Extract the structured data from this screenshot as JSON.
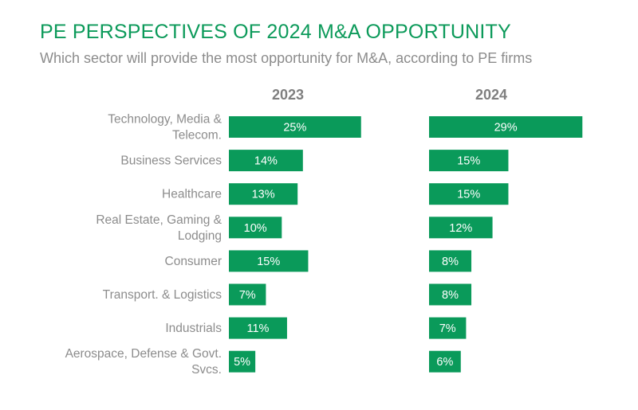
{
  "title": "PE PERSPECTIVES OF 2024 M&A OPPORTUNITY",
  "subtitle": "Which sector will provide the most opportunity for M&A, according to PE firms",
  "colors": {
    "bar": "#0a9a5a",
    "title": "#0c9a5a",
    "label": "#8c8c8c",
    "header": "#7f7f7f",
    "bar_text": "#ffffff"
  },
  "chart_data": {
    "type": "bar",
    "orientation": "horizontal",
    "value_format": "percent",
    "categories": [
      [
        "Technology, Media &",
        "Telecom."
      ],
      [
        "Business Services"
      ],
      [
        "Healthcare"
      ],
      [
        "Real Estate, Gaming &",
        "Lodging"
      ],
      [
        "Consumer"
      ],
      [
        "Transport. & Logistics"
      ],
      [
        "Industrials"
      ],
      [
        "Aerospace, Defense & Govt.",
        "Svcs."
      ]
    ],
    "series": [
      {
        "name": "2023",
        "values": [
          25,
          14,
          13,
          10,
          15,
          7,
          11,
          5
        ]
      },
      {
        "name": "2024",
        "values": [
          29,
          15,
          15,
          12,
          8,
          8,
          7,
          6
        ]
      }
    ],
    "data_labels": true,
    "grid": false
  }
}
